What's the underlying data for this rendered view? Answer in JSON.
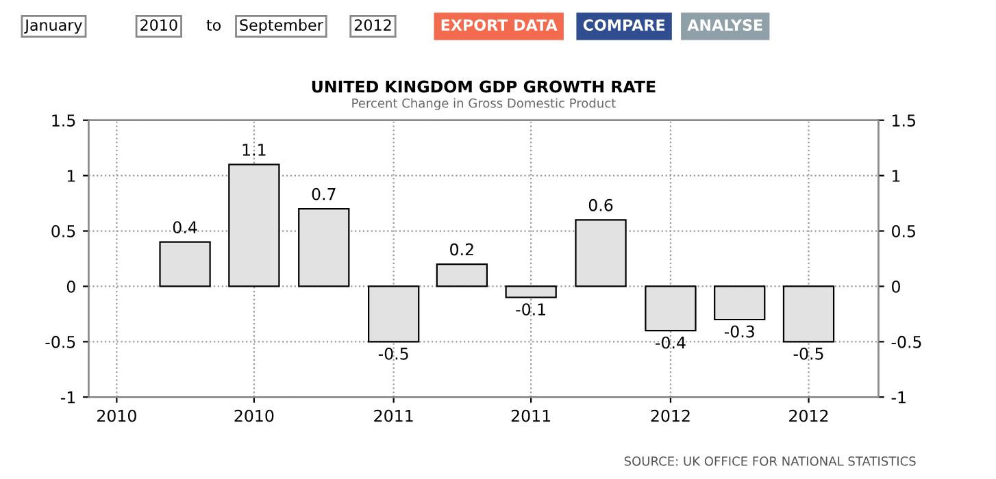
{
  "chart_data": {
    "type": "bar",
    "title": "UNITED KINGDOM GDP GROWTH RATE",
    "subtitle": "Percent Change in Gross Domestic Product",
    "x": [
      "2010-04",
      "2010-07",
      "2010-10",
      "2011-01",
      "2011-04",
      "2011-07",
      "2011-10",
      "2012-01",
      "2012-04",
      "2012-07"
    ],
    "values": [
      0.4,
      1.1,
      0.7,
      -0.5,
      0.2,
      -0.1,
      0.6,
      -0.4,
      -0.3,
      -0.5
    ],
    "color": "#e2e2e2",
    "data_labels": true,
    "xlim": [
      "2009-11-25",
      "2012-10-01"
    ],
    "xticks": [
      {
        "value": "2010-01",
        "label": "2010"
      },
      {
        "value": "2010-07",
        "label": "2010"
      },
      {
        "value": "2011-01",
        "label": "2011"
      },
      {
        "value": "2011-07",
        "label": "2011"
      },
      {
        "value": "2012-01",
        "label": "2012"
      },
      {
        "value": "2012-07",
        "label": "2012"
      }
    ],
    "ylim": [
      -1,
      1.5
    ],
    "yticks": [
      -1,
      -0.5,
      0,
      0.5,
      1,
      1.5
    ],
    "y2lim": [
      -1,
      1.5
    ],
    "y2ticks": [
      -1,
      -0.5,
      0,
      0.5,
      1,
      1.5
    ],
    "grid": true,
    "annotations": [
      "January",
      "2010",
      "to",
      "September",
      "2012",
      "EXPORT DATA",
      "COMPARE",
      "ANALYSE",
      "SOURCE: UK OFFICE FOR NATIONAL STATISTICS"
    ]
  }
}
